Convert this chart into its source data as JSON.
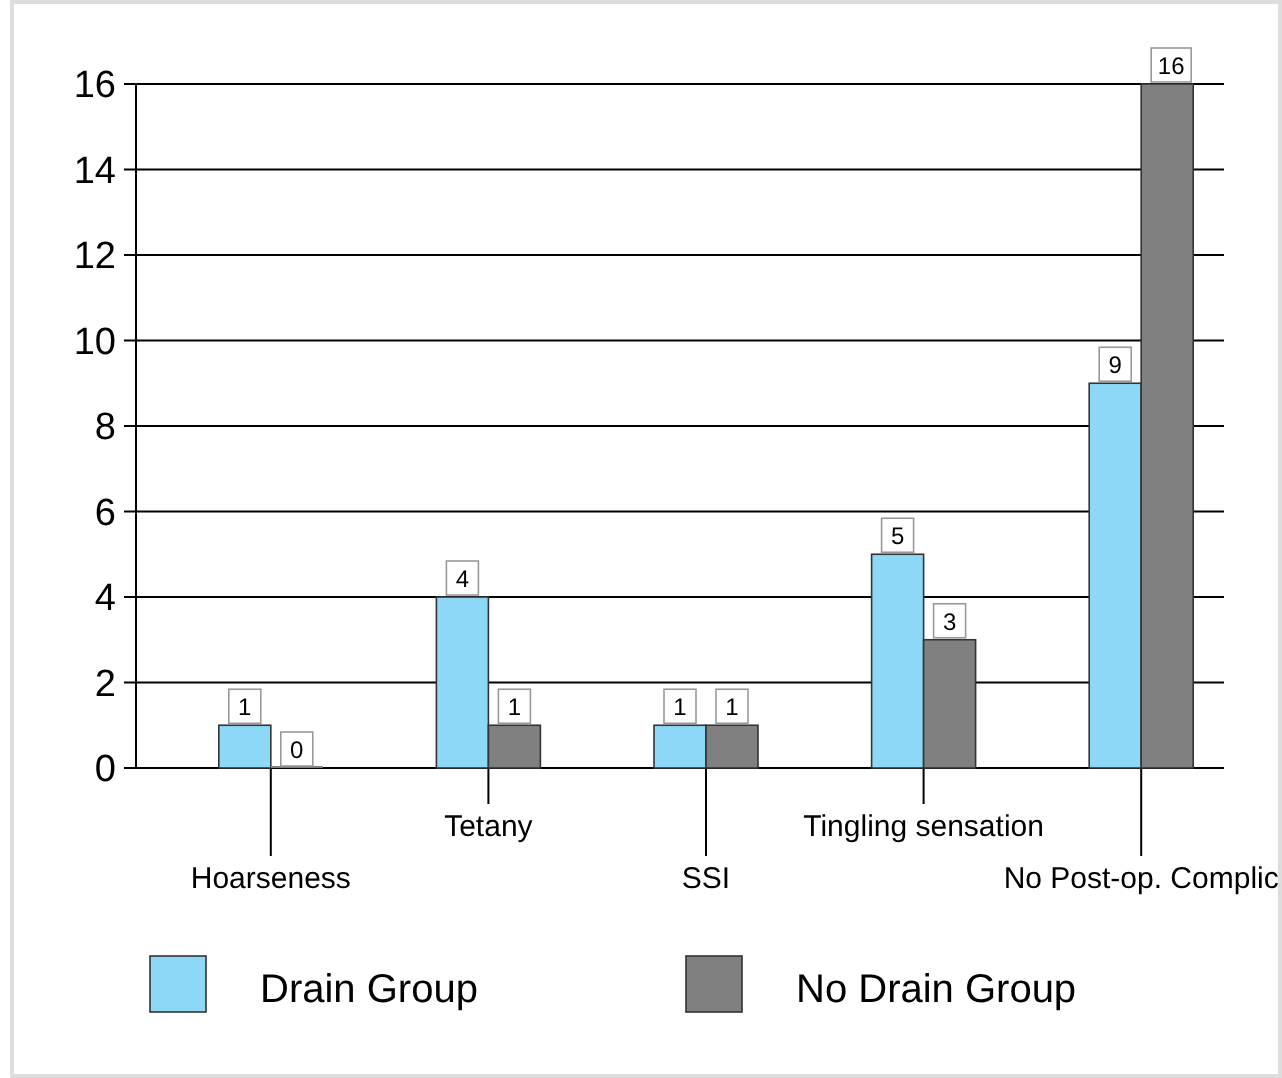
{
  "chart_data": {
    "type": "bar",
    "categories": [
      "Hoarseness",
      "Tetany",
      "SSI",
      "Tingling sensation",
      "No Post-op. Complic"
    ],
    "series": [
      {
        "name": "Drain Group",
        "color": "#8dd8f7",
        "values": [
          1,
          4,
          1,
          5,
          9
        ]
      },
      {
        "name": "No Drain Group",
        "color": "#808080",
        "values": [
          0,
          1,
          1,
          3,
          16
        ]
      }
    ],
    "ylim": [
      0,
      16
    ],
    "yticks": [
      0,
      2,
      4,
      6,
      8,
      10,
      12,
      14,
      16
    ],
    "grid": "y",
    "legend": "bottom",
    "data_labels": true
  }
}
